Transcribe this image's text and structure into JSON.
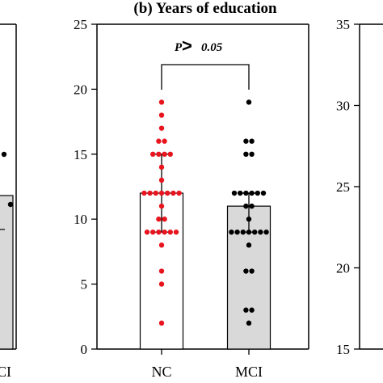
{
  "title": "(b) Years of education",
  "annotation": "P > 0.05",
  "colors": {
    "nc_points": "#e8141e",
    "mci_points": "#000000",
    "nc_bar_fill": "#ffffff",
    "mci_bar_fill": "#d9d9d9",
    "axis": "#000000"
  },
  "left_panel": {
    "visible_label": "CI",
    "nc_ci_fragment": "C",
    "bar_value": 11.8,
    "points": [
      15,
      12.4
    ]
  },
  "right_panel": {
    "ylim": [
      15,
      35
    ],
    "ticks": [
      "15",
      "20",
      "25",
      "30",
      "35"
    ]
  },
  "chart_data": {
    "type": "bar",
    "title": "(b) Years of education",
    "categories": [
      "NC",
      "MCI"
    ],
    "ylim": [
      0,
      25
    ],
    "yticks": [
      "0",
      "5",
      "10",
      "15",
      "20",
      "25"
    ],
    "series": [
      {
        "values": [
          12,
          11
        ],
        "error_upper": [
          15,
          12
        ],
        "error_lower": [
          9,
          9
        ],
        "points": [
          [
            19,
            18,
            17,
            16,
            16,
            15,
            15,
            15,
            15,
            14,
            13,
            12,
            12,
            12,
            12,
            12,
            12,
            12,
            11,
            10,
            10,
            9,
            9,
            9,
            9,
            9,
            9,
            8,
            6,
            5,
            2
          ],
          [
            19,
            16,
            16,
            15,
            15,
            12,
            12,
            12,
            12,
            12,
            12,
            11,
            11,
            10,
            9,
            9,
            9,
            9,
            9,
            9,
            9,
            8,
            6,
            6,
            3,
            3,
            2
          ]
        ]
      }
    ],
    "annotation": "P > 0.05"
  }
}
